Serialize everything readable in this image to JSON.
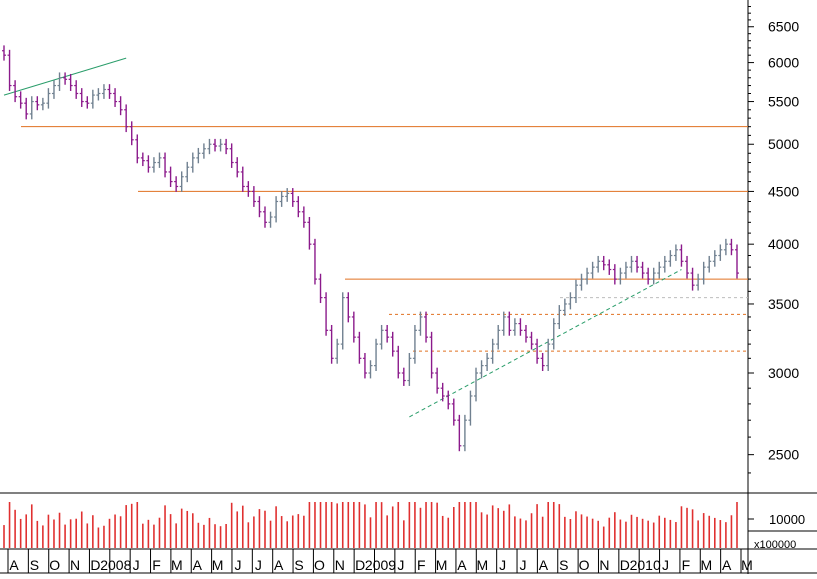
{
  "chart_data": {
    "type": "ohlc",
    "scale": "log",
    "ylim": [
      2300,
      6900
    ],
    "yticks": [
      6500,
      6000,
      5500,
      5000,
      4500,
      4000,
      3500,
      3000,
      2500
    ],
    "month_labels": [
      "A",
      "S",
      "O",
      "N",
      "D",
      "2008",
      "J",
      "F",
      "M",
      "A",
      "M",
      "J",
      "J",
      "A",
      "S",
      "O",
      "N",
      "D",
      "2009",
      "J",
      "F",
      "M",
      "A",
      "M",
      "J",
      "J",
      "A",
      "S",
      "O",
      "N",
      "D",
      "2010",
      "J",
      "F",
      "M",
      "A",
      "M"
    ],
    "volume_tick_label": "10000",
    "volume_unit_label": "x100000",
    "colors": {
      "up_bar": "#708090",
      "down_bar": "#8b1a8b",
      "resistance": "#e07020",
      "trend": "#2a9d6a",
      "volume": "#e03030",
      "dashed_grey": "#bdbdbd"
    },
    "weekly_closes": [
      6100,
      5700,
      5560,
      5480,
      5350,
      5500,
      5460,
      5480,
      5600,
      5700,
      5800,
      5780,
      5700,
      5600,
      5500,
      5480,
      5580,
      5600,
      5650,
      5600,
      5500,
      5400,
      5200,
      5050,
      4850,
      4820,
      4750,
      4800,
      4850,
      4700,
      4600,
      4550,
      4650,
      4750,
      4850,
      4900,
      4950,
      5000,
      4980,
      5000,
      4950,
      4800,
      4700,
      4550,
      4500,
      4400,
      4300,
      4200,
      4250,
      4400,
      4450,
      4480,
      4400,
      4300,
      4200,
      4000,
      3700,
      3550,
      3300,
      3100,
      3200,
      3550,
      3400,
      3250,
      3100,
      3000,
      3050,
      3200,
      3300,
      3250,
      3150,
      3000,
      2950,
      3100,
      3300,
      3400,
      3250,
      3000,
      2900,
      2850,
      2800,
      2700,
      2550,
      2700,
      2850,
      3000,
      3050,
      3100,
      3200,
      3300,
      3400,
      3300,
      3350,
      3300,
      3250,
      3200,
      3100,
      3050,
      3200,
      3350,
      3450,
      3500,
      3550,
      3650,
      3700,
      3750,
      3800,
      3850,
      3820,
      3780,
      3700,
      3750,
      3800,
      3850,
      3800,
      3750,
      3700,
      3750,
      3800,
      3850,
      3900,
      3950,
      3850,
      3750,
      3650,
      3700,
      3800,
      3850,
      3900,
      3950,
      4000,
      3950,
      3750
    ],
    "resistance_levels": [
      5200,
      4500,
      3700
    ],
    "dashed_levels": [
      3550,
      3420,
      3150
    ],
    "trendlines": [
      {
        "from": {
          "week": 0,
          "price": 5580
        },
        "to": {
          "week": 22,
          "price": 6060
        }
      },
      {
        "from": {
          "week": 73,
          "price": 2720
        },
        "to": {
          "week": 122,
          "price": 3780
        }
      }
    ]
  }
}
